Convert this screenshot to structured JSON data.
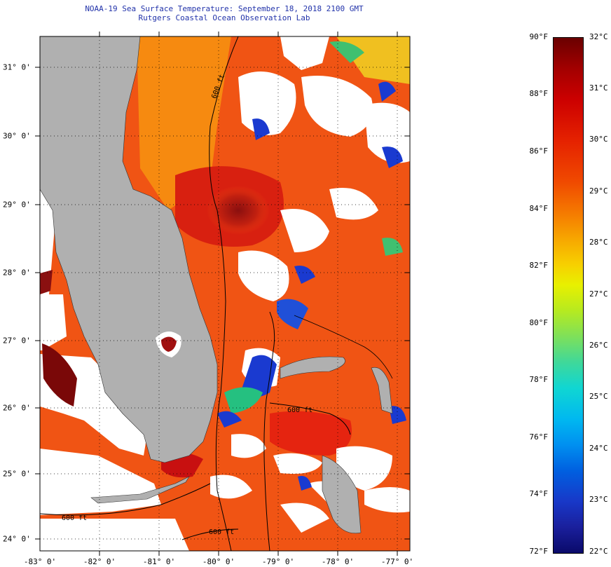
{
  "header": {
    "title_line1": "NOAA-19 Sea Surface Temperature:  September 18, 2018 2100 GMT",
    "title_line2": "Rutgers Coastal Ocean Observation Lab"
  },
  "axes": {
    "longitude_labels": [
      "-83° 0'",
      "-82° 0'",
      "-81° 0'",
      "-80° 0'",
      "-79° 0'",
      "-78° 0'",
      "-77° 0'"
    ],
    "latitude_labels": [
      "31° 0'",
      "30° 0'",
      "29° 0'",
      "28° 0'",
      "27° 0'",
      "26° 0'",
      "25° 0'",
      "24° 0'"
    ],
    "lon_range": [
      -83,
      -76.8
    ],
    "lat_range": [
      23.8,
      31.4
    ]
  },
  "contours": {
    "label_a": "600 ft",
    "label_b": "600 ft",
    "label_c": "600 ft",
    "label_d": "600 ft"
  },
  "colorbar": {
    "fahrenheit": [
      "90°F",
      "88°F",
      "86°F",
      "84°F",
      "82°F",
      "80°F",
      "78°F",
      "76°F",
      "74°F",
      "72°F"
    ],
    "celsius": [
      "32°C",
      "31°C",
      "30°C",
      "29°C",
      "28°C",
      "27°C",
      "26°C",
      "25°C",
      "24°C",
      "23°C",
      "22°C"
    ]
  },
  "colors": {
    "land": "#b0b0b0",
    "warm_water": "#f05010",
    "hot_water": "#8a0a0a",
    "cloud": "#ffffff"
  }
}
